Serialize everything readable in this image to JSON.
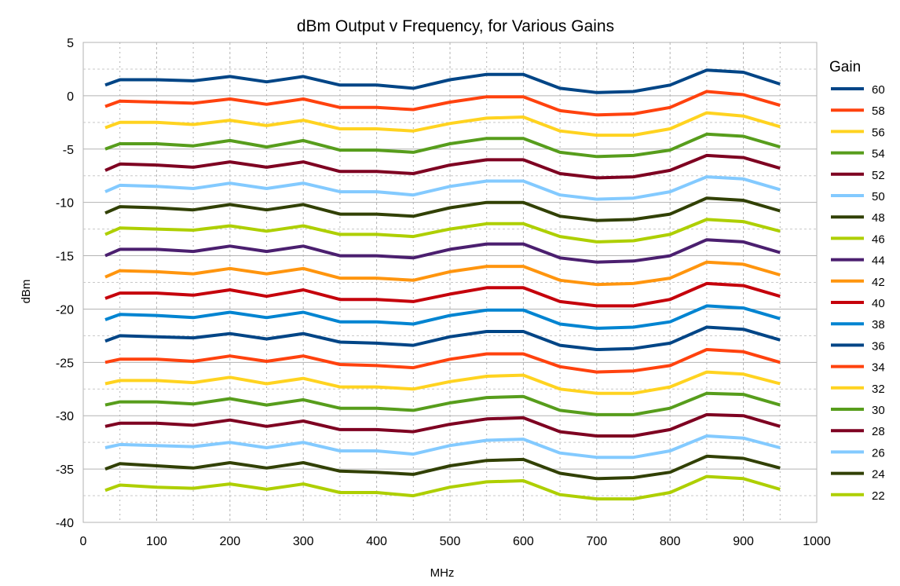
{
  "chart_data": {
    "type": "line",
    "title": "dBm Output v Frequency, for Various Gains",
    "xlabel": "MHz",
    "ylabel": "dBm",
    "xlim": [
      0,
      1000
    ],
    "ylim": [
      -40,
      5
    ],
    "xticks": [
      0,
      100,
      200,
      300,
      400,
      500,
      600,
      700,
      800,
      900,
      1000
    ],
    "yticks": [
      5,
      0,
      -5,
      -10,
      -15,
      -20,
      -25,
      -30,
      -35,
      -40
    ],
    "grid": true,
    "legend_title": "Gain",
    "legend_position": "right",
    "x": [
      30,
      50,
      100,
      150,
      200,
      250,
      300,
      350,
      400,
      450,
      500,
      550,
      600,
      650,
      700,
      750,
      800,
      850,
      900,
      950
    ],
    "series": [
      {
        "name": "60",
        "color": "#004586",
        "values": [
          1.0,
          1.5,
          1.5,
          1.4,
          1.8,
          1.3,
          1.8,
          1.0,
          1.0,
          0.7,
          1.5,
          2.0,
          2.0,
          0.7,
          0.3,
          0.4,
          1.0,
          2.4,
          2.2,
          1.1
        ]
      },
      {
        "name": "58",
        "color": "#ff420e",
        "values": [
          -1.0,
          -0.5,
          -0.6,
          -0.7,
          -0.3,
          -0.8,
          -0.3,
          -1.1,
          -1.1,
          -1.3,
          -0.6,
          -0.1,
          -0.1,
          -1.4,
          -1.8,
          -1.7,
          -1.1,
          0.4,
          0.1,
          -0.9
        ]
      },
      {
        "name": "56",
        "color": "#ffd320",
        "values": [
          -3.0,
          -2.5,
          -2.5,
          -2.7,
          -2.3,
          -2.8,
          -2.3,
          -3.1,
          -3.1,
          -3.3,
          -2.6,
          -2.1,
          -2.0,
          -3.3,
          -3.7,
          -3.7,
          -3.1,
          -1.6,
          -1.9,
          -2.9
        ]
      },
      {
        "name": "54",
        "color": "#579d1c",
        "values": [
          -5.0,
          -4.5,
          -4.5,
          -4.7,
          -4.2,
          -4.8,
          -4.2,
          -5.1,
          -5.1,
          -5.3,
          -4.5,
          -4.0,
          -4.0,
          -5.3,
          -5.7,
          -5.6,
          -5.1,
          -3.6,
          -3.8,
          -4.8
        ]
      },
      {
        "name": "52",
        "color": "#7e0021",
        "values": [
          -7.0,
          -6.4,
          -6.5,
          -6.7,
          -6.2,
          -6.7,
          -6.2,
          -7.1,
          -7.1,
          -7.3,
          -6.5,
          -6.0,
          -6.0,
          -7.3,
          -7.7,
          -7.6,
          -7.0,
          -5.6,
          -5.8,
          -6.8
        ]
      },
      {
        "name": "50",
        "color": "#83caff",
        "values": [
          -9.0,
          -8.4,
          -8.5,
          -8.7,
          -8.2,
          -8.7,
          -8.2,
          -9.0,
          -9.0,
          -9.3,
          -8.5,
          -8.0,
          -8.0,
          -9.3,
          -9.7,
          -9.6,
          -9.0,
          -7.6,
          -7.8,
          -8.8
        ]
      },
      {
        "name": "48",
        "color": "#314004",
        "values": [
          -11.0,
          -10.4,
          -10.5,
          -10.7,
          -10.2,
          -10.7,
          -10.2,
          -11.1,
          -11.1,
          -11.3,
          -10.5,
          -10.0,
          -10.0,
          -11.3,
          -11.7,
          -11.6,
          -11.1,
          -9.6,
          -9.8,
          -10.8
        ]
      },
      {
        "name": "46",
        "color": "#aecf00",
        "values": [
          -13.0,
          -12.4,
          -12.5,
          -12.6,
          -12.2,
          -12.7,
          -12.2,
          -13.0,
          -13.0,
          -13.2,
          -12.5,
          -12.0,
          -12.0,
          -13.2,
          -13.7,
          -13.6,
          -13.0,
          -11.6,
          -11.8,
          -12.7
        ]
      },
      {
        "name": "44",
        "color": "#4b1f6f",
        "values": [
          -15.0,
          -14.4,
          -14.4,
          -14.6,
          -14.1,
          -14.6,
          -14.1,
          -15.0,
          -15.0,
          -15.2,
          -14.4,
          -13.9,
          -13.9,
          -15.2,
          -15.6,
          -15.5,
          -15.0,
          -13.5,
          -13.7,
          -14.7
        ]
      },
      {
        "name": "42",
        "color": "#ff950e",
        "values": [
          -17.0,
          -16.4,
          -16.5,
          -16.7,
          -16.2,
          -16.7,
          -16.2,
          -17.1,
          -17.1,
          -17.3,
          -16.5,
          -16.0,
          -16.0,
          -17.3,
          -17.7,
          -17.6,
          -17.1,
          -15.6,
          -15.8,
          -16.8
        ]
      },
      {
        "name": "40",
        "color": "#c5000b",
        "values": [
          -19.0,
          -18.5,
          -18.5,
          -18.7,
          -18.2,
          -18.8,
          -18.2,
          -19.1,
          -19.1,
          -19.3,
          -18.6,
          -18.0,
          -18.0,
          -19.3,
          -19.7,
          -19.7,
          -19.1,
          -17.6,
          -17.8,
          -18.8
        ]
      },
      {
        "name": "38",
        "color": "#0084d1",
        "values": [
          -21.0,
          -20.5,
          -20.6,
          -20.8,
          -20.3,
          -20.8,
          -20.3,
          -21.2,
          -21.2,
          -21.4,
          -20.6,
          -20.1,
          -20.1,
          -21.4,
          -21.8,
          -21.7,
          -21.2,
          -19.7,
          -19.9,
          -20.9
        ]
      },
      {
        "name": "36",
        "color": "#004586",
        "values": [
          -23.0,
          -22.5,
          -22.6,
          -22.7,
          -22.3,
          -22.8,
          -22.3,
          -23.1,
          -23.2,
          -23.4,
          -22.6,
          -22.1,
          -22.1,
          -23.4,
          -23.8,
          -23.7,
          -23.2,
          -21.7,
          -21.9,
          -22.9
        ]
      },
      {
        "name": "34",
        "color": "#ff420e",
        "values": [
          -25.0,
          -24.7,
          -24.7,
          -24.9,
          -24.4,
          -24.9,
          -24.4,
          -25.2,
          -25.3,
          -25.5,
          -24.7,
          -24.2,
          -24.2,
          -25.4,
          -25.9,
          -25.8,
          -25.3,
          -23.8,
          -24.0,
          -25.0
        ]
      },
      {
        "name": "32",
        "color": "#ffd320",
        "values": [
          -27.0,
          -26.7,
          -26.7,
          -26.9,
          -26.4,
          -27.0,
          -26.5,
          -27.3,
          -27.3,
          -27.5,
          -26.8,
          -26.3,
          -26.2,
          -27.5,
          -27.9,
          -27.9,
          -27.3,
          -25.9,
          -26.1,
          -27.0
        ]
      },
      {
        "name": "30",
        "color": "#579d1c",
        "values": [
          -29.0,
          -28.7,
          -28.7,
          -28.9,
          -28.4,
          -29.0,
          -28.5,
          -29.3,
          -29.3,
          -29.5,
          -28.8,
          -28.3,
          -28.2,
          -29.5,
          -29.9,
          -29.9,
          -29.3,
          -27.9,
          -28.0,
          -29.0
        ]
      },
      {
        "name": "28",
        "color": "#7e0021",
        "values": [
          -31.0,
          -30.7,
          -30.7,
          -30.9,
          -30.4,
          -31.0,
          -30.5,
          -31.3,
          -31.3,
          -31.5,
          -30.8,
          -30.3,
          -30.2,
          -31.5,
          -31.9,
          -31.9,
          -31.3,
          -29.9,
          -30.0,
          -31.0
        ]
      },
      {
        "name": "26",
        "color": "#83caff",
        "values": [
          -33.0,
          -32.7,
          -32.8,
          -32.9,
          -32.5,
          -33.0,
          -32.5,
          -33.3,
          -33.3,
          -33.6,
          -32.8,
          -32.3,
          -32.2,
          -33.5,
          -33.9,
          -33.9,
          -33.3,
          -31.9,
          -32.1,
          -33.0
        ]
      },
      {
        "name": "24",
        "color": "#314004",
        "values": [
          -35.0,
          -34.5,
          -34.7,
          -34.9,
          -34.4,
          -34.9,
          -34.4,
          -35.2,
          -35.3,
          -35.5,
          -34.7,
          -34.2,
          -34.1,
          -35.4,
          -35.9,
          -35.8,
          -35.3,
          -33.8,
          -34.0,
          -34.9
        ]
      },
      {
        "name": "22",
        "color": "#aecf00",
        "values": [
          -37.0,
          -36.5,
          -36.7,
          -36.8,
          -36.4,
          -36.9,
          -36.4,
          -37.2,
          -37.2,
          -37.5,
          -36.7,
          -36.2,
          -36.1,
          -37.4,
          -37.8,
          -37.8,
          -37.2,
          -35.7,
          -35.9,
          -36.9
        ]
      }
    ]
  }
}
